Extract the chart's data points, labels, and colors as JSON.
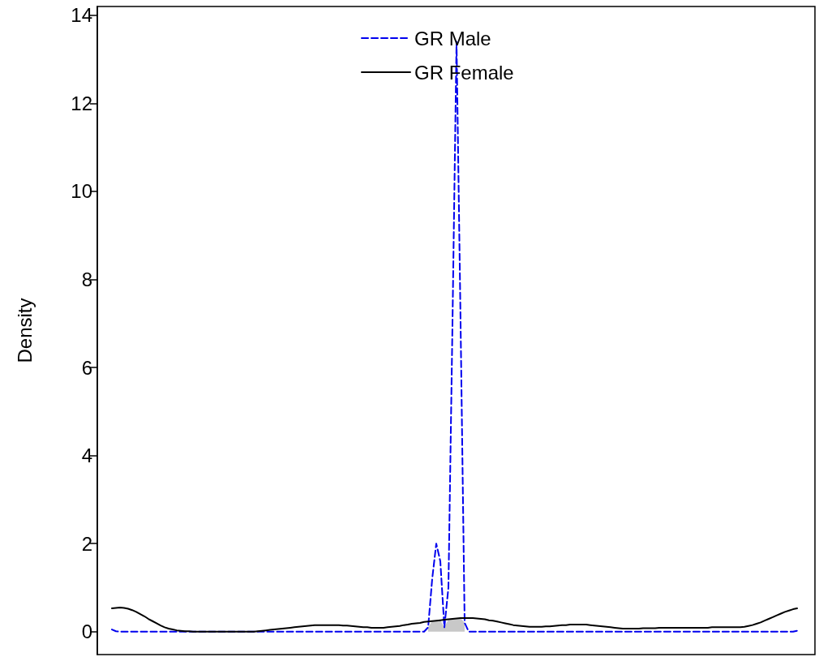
{
  "chart_data": {
    "type": "line",
    "ylabel": "Density",
    "legend": "top",
    "grid": false,
    "tick_labels": "y",
    "ylim": [
      -0.52,
      14.2
    ],
    "yticks": [
      0,
      2,
      4,
      6,
      8,
      10,
      12,
      14
    ],
    "categories": [
      null,
      null,
      null,
      null,
      null,
      null,
      null,
      null,
      null,
      null,
      null,
      null,
      null,
      null,
      null,
      null,
      null,
      null,
      null,
      null,
      null,
      null,
      null,
      null,
      null,
      null,
      null,
      null,
      null,
      null,
      null,
      null,
      null,
      null,
      null,
      null,
      null,
      null,
      null,
      null,
      null,
      null,
      null,
      null,
      null,
      null,
      null,
      null,
      null,
      null,
      null,
      null,
      null,
      null,
      null,
      null,
      null,
      null,
      null,
      null,
      null,
      null,
      null,
      null,
      null,
      null,
      null,
      null,
      null,
      null,
      null,
      null,
      null,
      null,
      null,
      null,
      null,
      null,
      null,
      null,
      null,
      null,
      null,
      null,
      null,
      null,
      null,
      null,
      null,
      null,
      null,
      null,
      null,
      null,
      null,
      null,
      null,
      null,
      null,
      null,
      null,
      null,
      null,
      null,
      null,
      null,
      null,
      null,
      null,
      null,
      null,
      null,
      null,
      null,
      null,
      null,
      null,
      null,
      null,
      null,
      null,
      null,
      null,
      null,
      null,
      null,
      null,
      null,
      null,
      null,
      null,
      null,
      null,
      null,
      null,
      null,
      null,
      null,
      null,
      null,
      null,
      null,
      null,
      null,
      null,
      null,
      null,
      null,
      null,
      null,
      null,
      null,
      null,
      null,
      null,
      null,
      null,
      null,
      null,
      null,
      null,
      null,
      null,
      null,
      null,
      null,
      null,
      null,
      null,
      null
    ],
    "series": [
      {
        "type": "area",
        "color": "#c8c8c8",
        "values": [
          null,
          null,
          null,
          null,
          null,
          null,
          null,
          null,
          null,
          null,
          null,
          null,
          null,
          null,
          null,
          null,
          null,
          null,
          null,
          null,
          null,
          null,
          null,
          null,
          null,
          null,
          null,
          null,
          null,
          null,
          null,
          null,
          null,
          null,
          null,
          null,
          null,
          null,
          null,
          null,
          null,
          null,
          null,
          null,
          null,
          null,
          null,
          null,
          null,
          null,
          null,
          null,
          null,
          null,
          null,
          null,
          null,
          null,
          null,
          null,
          null,
          null,
          null,
          null,
          null,
          null,
          null,
          null,
          null,
          null,
          null,
          null,
          null,
          null,
          null,
          null,
          null,
          null,
          0.1,
          0.24,
          0.25,
          0.26,
          0.1,
          0.28,
          0.29,
          0.3,
          0.31,
          0.2,
          null,
          null,
          null,
          null,
          null,
          null,
          null,
          null,
          null,
          null,
          null,
          null,
          null,
          null,
          null,
          null,
          null,
          null,
          null,
          null,
          null,
          null,
          null,
          null,
          null,
          null,
          null,
          null,
          null,
          null,
          null,
          null,
          null,
          null,
          null,
          null,
          null,
          null,
          null,
          null,
          null,
          null,
          null,
          null,
          null,
          null,
          null,
          null,
          null,
          null,
          null,
          null,
          null,
          null,
          null,
          null,
          null,
          null,
          null,
          null,
          null,
          null,
          null,
          null,
          null,
          null,
          null,
          null,
          null,
          null,
          null,
          null,
          null,
          null,
          null,
          null,
          null,
          null,
          null,
          null,
          null,
          null
        ]
      },
      {
        "name": "GR Male",
        "color": "#0000ee",
        "line_style": "dashed",
        "values": [
          0.05,
          0.01,
          0,
          0,
          0,
          0,
          0,
          0,
          0,
          0,
          0,
          0,
          0,
          0,
          0,
          0,
          0,
          0,
          0,
          0,
          0,
          0,
          0,
          0,
          0,
          0,
          0,
          0,
          0,
          0,
          0,
          0,
          0,
          0,
          0,
          0,
          0,
          0,
          0,
          0,
          0,
          0,
          0,
          0,
          0,
          0,
          0,
          0,
          0,
          0,
          0,
          0,
          0,
          0,
          0,
          0,
          0,
          0,
          0,
          0,
          0,
          0,
          0,
          0,
          0,
          0,
          0,
          0,
          0,
          0,
          0,
          0,
          0,
          0,
          0,
          0,
          0,
          0,
          0.1,
          1.2,
          2.0,
          1.6,
          0.1,
          1.0,
          7.0,
          13.4,
          7.0,
          0.2,
          0,
          0,
          0,
          0,
          0,
          0,
          0,
          0,
          0,
          0,
          0,
          0,
          0,
          0,
          0,
          0,
          0,
          0,
          0,
          0,
          0,
          0,
          0,
          0,
          0,
          0,
          0,
          0,
          0,
          0,
          0,
          0,
          0,
          0,
          0,
          0,
          0,
          0,
          0,
          0,
          0,
          0,
          0,
          0,
          0,
          0,
          0,
          0,
          0,
          0,
          0,
          0,
          0,
          0,
          0,
          0,
          0,
          0,
          0,
          0,
          0,
          0,
          0,
          0,
          0,
          0,
          0,
          0,
          0,
          0,
          0,
          0,
          0,
          0,
          0,
          0,
          0,
          0,
          0,
          0,
          0,
          0.02
        ]
      },
      {
        "name": "GR Female",
        "color": "#000000",
        "line_style": "solid",
        "values": [
          0.53,
          0.54,
          0.55,
          0.54,
          0.52,
          0.49,
          0.45,
          0.4,
          0.35,
          0.29,
          0.24,
          0.19,
          0.14,
          0.1,
          0.07,
          0.05,
          0.03,
          0.02,
          0.01,
          0.01,
          0,
          0,
          0,
          0,
          0,
          0,
          0,
          0,
          0,
          0,
          0,
          0,
          0,
          0,
          0,
          0,
          0.01,
          0.02,
          0.03,
          0.04,
          0.05,
          0.06,
          0.07,
          0.08,
          0.09,
          0.1,
          0.11,
          0.12,
          0.13,
          0.14,
          0.15,
          0.15,
          0.15,
          0.15,
          0.15,
          0.15,
          0.15,
          0.14,
          0.14,
          0.13,
          0.12,
          0.11,
          0.1,
          0.1,
          0.09,
          0.09,
          0.09,
          0.09,
          0.1,
          0.11,
          0.12,
          0.13,
          0.15,
          0.16,
          0.18,
          0.19,
          0.2,
          0.22,
          0.23,
          0.24,
          0.25,
          0.26,
          0.27,
          0.28,
          0.29,
          0.3,
          0.31,
          0.31,
          0.31,
          0.31,
          0.3,
          0.29,
          0.28,
          0.26,
          0.25,
          0.23,
          0.21,
          0.19,
          0.17,
          0.15,
          0.14,
          0.13,
          0.12,
          0.11,
          0.11,
          0.11,
          0.11,
          0.12,
          0.12,
          0.13,
          0.14,
          0.15,
          0.15,
          0.16,
          0.16,
          0.16,
          0.16,
          0.16,
          0.15,
          0.14,
          0.13,
          0.12,
          0.11,
          0.1,
          0.09,
          0.08,
          0.07,
          0.07,
          0.07,
          0.07,
          0.07,
          0.08,
          0.08,
          0.08,
          0.08,
          0.09,
          0.09,
          0.09,
          0.09,
          0.09,
          0.09,
          0.09,
          0.09,
          0.09,
          0.09,
          0.09,
          0.09,
          0.09,
          0.1,
          0.1,
          0.1,
          0.1,
          0.1,
          0.1,
          0.1,
          0.1,
          0.11,
          0.13,
          0.15,
          0.18,
          0.21,
          0.25,
          0.29,
          0.33,
          0.37,
          0.41,
          0.45,
          0.48,
          0.51,
          0.53
        ]
      }
    ]
  }
}
